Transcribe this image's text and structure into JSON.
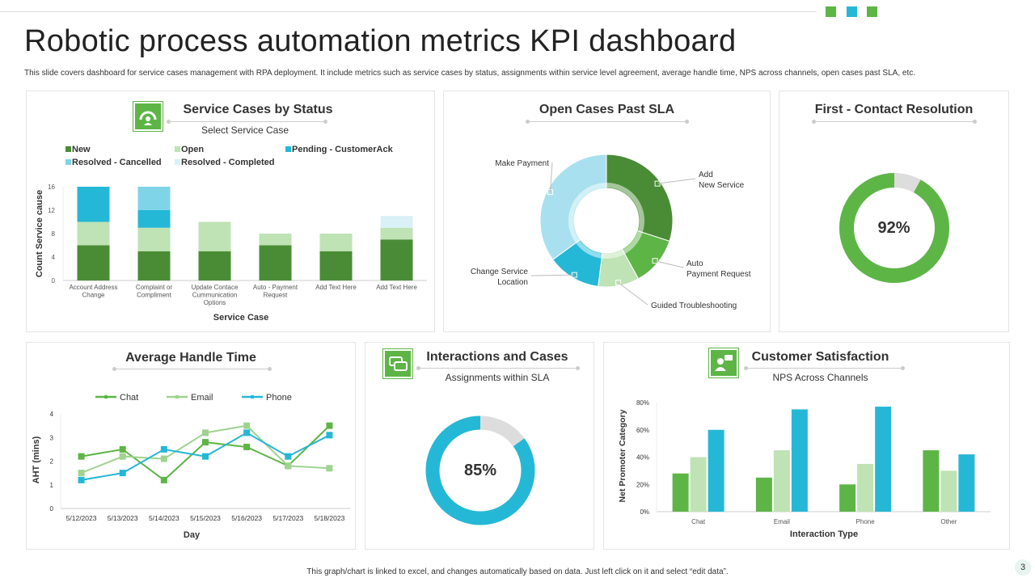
{
  "title": "Robotic process automation metrics KPI dashboard",
  "subtitle": "This slide covers dashboard for service cases management with RPA deployment. It include metrics such as service cases by status, assignments within service level agreement, average handle time, NPS  across channels, open cases past SLA, etc.",
  "footer": "This graph/chart is linked to excel, and changes automatically based on data. Just left click on it and select “edit data”.",
  "page_number": "3",
  "colors": {
    "dark_green": "#4a8c35",
    "green": "#5db546",
    "light_green": "#bfe3b4",
    "cyan": "#25b8d6",
    "light_cyan": "#a8e0ef",
    "pale_cyan": "#d9f1f7",
    "grey": "#dddddd"
  },
  "panels": {
    "service_cases": {
      "title": "Service Cases by  Status",
      "subtitle": "Select Service Case",
      "icon": "gauge-user-icon"
    },
    "open_cases": {
      "title": "Open Cases Past SLA"
    },
    "fcr": {
      "title": "First - Contact Resolution",
      "value": "92%",
      "percent": 92
    },
    "aht": {
      "title": "Average Handle Time"
    },
    "interactions": {
      "title": "Interactions and Cases",
      "subtitle": "Assignments within SLA",
      "value": "85%",
      "percent": 85,
      "icon": "chat-icon"
    },
    "csat": {
      "title": "Customer Satisfaction",
      "subtitle": "NPS Across Channels",
      "icon": "user-chat-icon"
    }
  },
  "chart_data": [
    {
      "type": "bar",
      "stacked": true,
      "xlabel": "Service Case",
      "ylabel": "Count Service cause",
      "ylim": [
        0,
        16
      ],
      "yticks": [
        "0",
        "4",
        "8",
        "12",
        "16"
      ],
      "categories": [
        "Account Address Change",
        "Complaint or Compliment",
        "Update Contace Cummunication Options",
        "Auto - Payment Request",
        "Add Text Here",
        "Add Text Here"
      ],
      "series": [
        {
          "name": "New",
          "color": "#4a8c35",
          "values": [
            6,
            5,
            5,
            6,
            5,
            7
          ]
        },
        {
          "name": "Open",
          "color": "#bfe3b4",
          "values": [
            4,
            4,
            5,
            2,
            3,
            2
          ]
        },
        {
          "name": "Pending - CustomerAck",
          "color": "#25b8d6",
          "values": [
            6,
            3,
            0,
            0,
            0,
            0
          ]
        },
        {
          "name": "Resolved - Cancelled",
          "color": "#7fd4e8",
          "values": [
            0,
            4,
            0,
            0,
            0,
            0
          ]
        },
        {
          "name": "Resolved -  Completed",
          "color": "#d9f1f7",
          "values": [
            0,
            0,
            0,
            0,
            0,
            2
          ]
        }
      ],
      "legend": "top"
    },
    {
      "type": "pie",
      "donut": true,
      "slices": [
        {
          "label": "Add New Service",
          "value": 30,
          "color": "#4a8c35"
        },
        {
          "label": "Auto Payment Request",
          "value": 12,
          "color": "#5db546"
        },
        {
          "label": "Guided Troubleshooting",
          "value": 10,
          "color": "#bfe3b4"
        },
        {
          "label": "Change Service Location",
          "value": 13,
          "color": "#25b8d6"
        },
        {
          "label": "Make Payment",
          "value": 35,
          "color": "#a8e0ef"
        }
      ]
    },
    {
      "type": "line",
      "xlabel": "Day",
      "ylabel": "AHT (mins)",
      "ylim": [
        0,
        4
      ],
      "yticks": [
        "0",
        "1",
        "2",
        "3",
        "4"
      ],
      "x": [
        "5/12/2023",
        "5/13/2023",
        "5/14/2023",
        "5/15/2023",
        "5/16/2023",
        "5/17/2023",
        "5/18/2023"
      ],
      "series": [
        {
          "name": "Chat",
          "color": "#5db546",
          "values": [
            2.2,
            2.5,
            1.2,
            2.8,
            2.6,
            1.8,
            3.5
          ]
        },
        {
          "name": "Email",
          "color": "#9fd38f",
          "values": [
            1.5,
            2.2,
            2.1,
            3.2,
            3.5,
            1.8,
            1.7
          ]
        },
        {
          "name": "Phone",
          "color": "#25b8d6",
          "values": [
            1.2,
            1.5,
            2.5,
            2.2,
            3.2,
            2.2,
            3.1
          ]
        }
      ],
      "legend": "top"
    },
    {
      "type": "bar",
      "xlabel": "Interaction Type",
      "ylabel": "Net Promoter Category",
      "ylim": [
        0,
        80
      ],
      "yticks": [
        "0%",
        "20%",
        "40%",
        "60%",
        "80%"
      ],
      "categories": [
        "Chat",
        "Email",
        "Phone",
        "Other"
      ],
      "series": [
        {
          "color": "#5db546",
          "values": [
            28,
            25,
            20,
            45
          ]
        },
        {
          "color": "#bfe3b4",
          "values": [
            40,
            45,
            35,
            30
          ]
        },
        {
          "color": "#25b8d6",
          "values": [
            60,
            75,
            77,
            42
          ]
        }
      ]
    }
  ]
}
